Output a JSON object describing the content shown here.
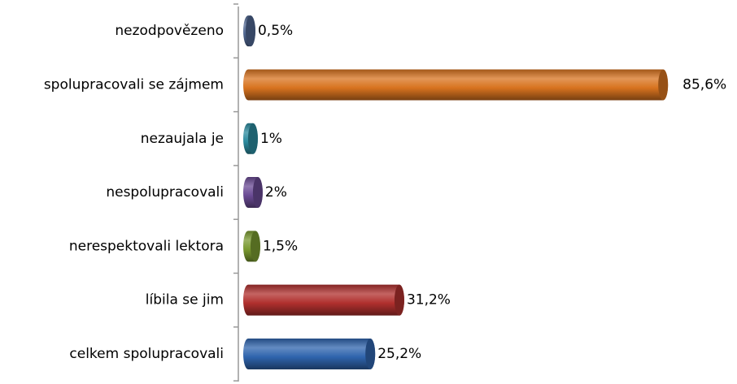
{
  "chart_data": {
    "type": "bar",
    "categories": [
      "nezodpovězeno",
      "spolupracovali se zájmem",
      "nezaujala je",
      "nespolupracovali",
      "nerespektovali lektora",
      "líbila se jim",
      "celkem spolupracovali"
    ],
    "values": [
      0.5,
      85.6,
      1,
      2,
      1.5,
      31.2,
      25.2
    ],
    "value_labels": [
      "0,5%",
      "85,6%",
      "1%",
      "2%",
      "1,5%",
      "31,2%",
      "25,2%"
    ],
    "colors": [
      "#4f6690",
      "#d8731f",
      "#2b8a9e",
      "#6a4a94",
      "#7a9a30",
      "#b0302e",
      "#2f64ad"
    ]
  }
}
